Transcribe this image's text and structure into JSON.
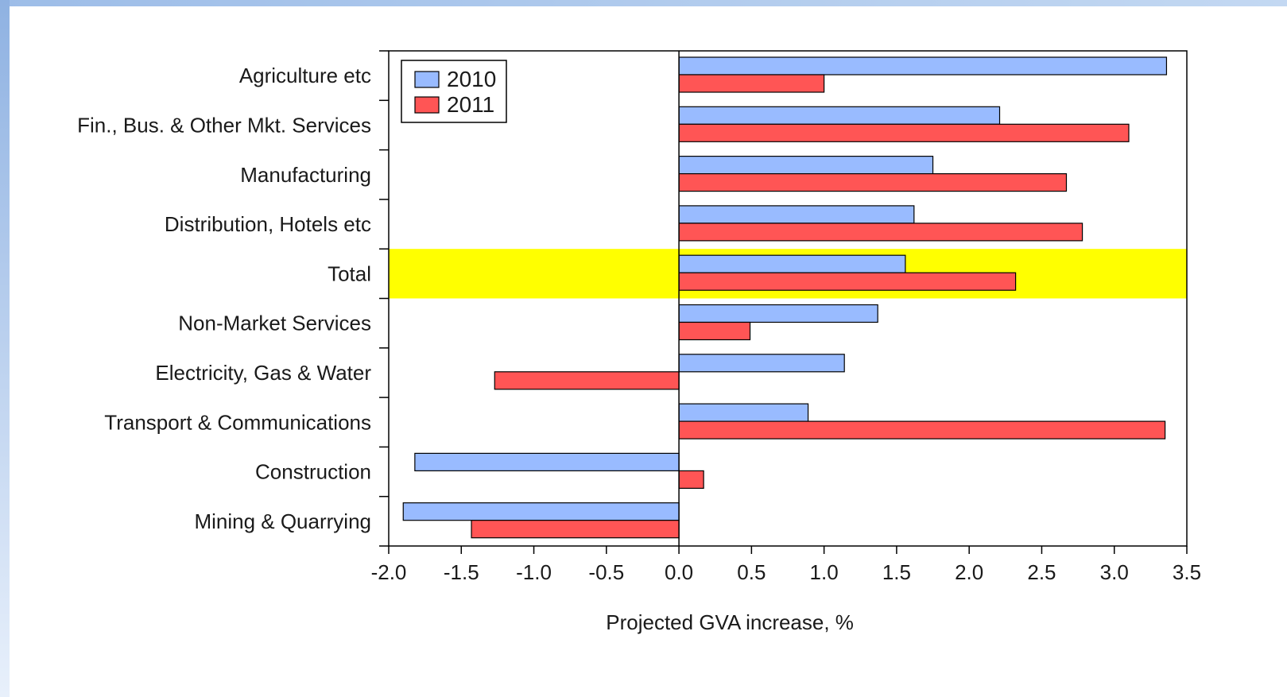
{
  "chart_data": {
    "type": "bar",
    "orientation": "horizontal",
    "categories": [
      "Agriculture etc",
      "Fin., Bus. & Other Mkt. Services",
      "Manufacturing",
      "Distribution, Hotels etc",
      "Total",
      "Non-Market Services",
      "Electricity, Gas & Water",
      "Transport & Communications",
      "Construction",
      "Mining & Quarrying"
    ],
    "series": [
      {
        "name": "2010",
        "color": "#99bbff",
        "values": [
          3.36,
          2.21,
          1.75,
          1.62,
          1.56,
          1.37,
          1.14,
          0.89,
          -1.82,
          -1.9
        ]
      },
      {
        "name": "2011",
        "color": "#ff5555",
        "values": [
          1.0,
          3.1,
          2.67,
          2.78,
          2.32,
          0.49,
          -1.27,
          3.35,
          0.17,
          -1.43
        ]
      }
    ],
    "highlight_category": "Total",
    "highlight_color": "#ffff00",
    "xlabel": "Projected GVA increase, %",
    "ylabel": "",
    "title": "",
    "xlim": [
      -2.0,
      3.5
    ],
    "xticks": [
      "-2.0",
      "-1.5",
      "-1.0",
      "-0.5",
      "0.0",
      "0.5",
      "1.0",
      "1.5",
      "2.0",
      "2.5",
      "3.0",
      "3.5"
    ],
    "grid": false,
    "legend_position": "top-left"
  }
}
